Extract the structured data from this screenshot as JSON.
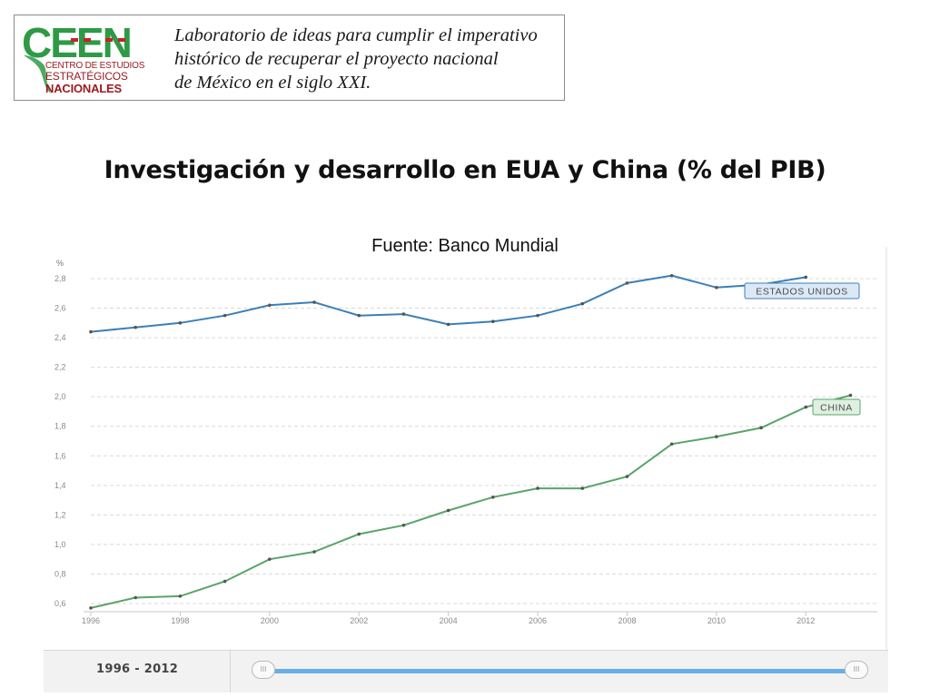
{
  "logo": {
    "acronym": "CEEN",
    "subtitle_line1": "CENTRO DE ESTUDIOS",
    "subtitle_line2": "ESTRATÉGICOS",
    "subtitle_line3": "NACIONALES",
    "tagline_line1": "Laboratorio de ideas para cumplir el imperativo",
    "tagline_line2": "histórico de recuperar el proyecto nacional",
    "tagline_line3": "de México en el siglo XXI.",
    "colors": {
      "green": "#2e9a46",
      "red": "#c8202a"
    }
  },
  "slide": {
    "title": "Investigación y desarrollo en EUA y China (% del PIB)",
    "source": "Fuente: Banco Mundial"
  },
  "slider": {
    "range_label": "1996 - 2012",
    "handle_glyph": "III"
  },
  "chart_data": {
    "type": "line",
    "title": "Investigación y desarrollo en EUA y China (% del PIB)",
    "ylabel": "%",
    "xlabel": "",
    "ylim": [
      0.55,
      2.85
    ],
    "xlim": [
      1996,
      2014
    ],
    "y_ticks": [
      0.6,
      0.8,
      1.0,
      1.2,
      1.4,
      1.6,
      1.8,
      2.0,
      2.2,
      2.4,
      2.6,
      2.8
    ],
    "y_tick_labels": [
      "0,6",
      "0,8",
      "1,0",
      "1,2",
      "1,4",
      "1,6",
      "1,8",
      "2,0",
      "2,2",
      "2,4",
      "2,6",
      "2,8"
    ],
    "x_ticks": [
      1996,
      1998,
      2000,
      2002,
      2004,
      2006,
      2008,
      2010,
      2012
    ],
    "x_tick_labels": [
      "1996",
      "1998",
      "2000",
      "2002",
      "2004",
      "2006",
      "2008",
      "2010",
      "2012"
    ],
    "grid": true,
    "series": [
      {
        "name": "ESTADOS UNIDOS",
        "color": "#3b7fb8",
        "label_bg": "#dbe9f6",
        "x": [
          1996,
          1997,
          1998,
          1999,
          2000,
          2001,
          2002,
          2003,
          2004,
          2005,
          2006,
          2007,
          2008,
          2009,
          2010,
          2011,
          2012
        ],
        "values": [
          2.44,
          2.47,
          2.5,
          2.55,
          2.62,
          2.64,
          2.55,
          2.56,
          2.49,
          2.51,
          2.55,
          2.63,
          2.77,
          2.82,
          2.74,
          2.76,
          2.81
        ]
      },
      {
        "name": "CHINA",
        "color": "#5aa468",
        "label_bg": "#dff0e1",
        "x": [
          1996,
          1997,
          1998,
          1999,
          2000,
          2001,
          2002,
          2003,
          2004,
          2005,
          2006,
          2007,
          2008,
          2009,
          2010,
          2011,
          2012,
          2013
        ],
        "values": [
          0.57,
          0.64,
          0.65,
          0.75,
          0.9,
          0.95,
          1.07,
          1.13,
          1.23,
          1.32,
          1.38,
          1.38,
          1.46,
          1.68,
          1.73,
          1.79,
          1.93,
          2.01
        ]
      }
    ]
  }
}
